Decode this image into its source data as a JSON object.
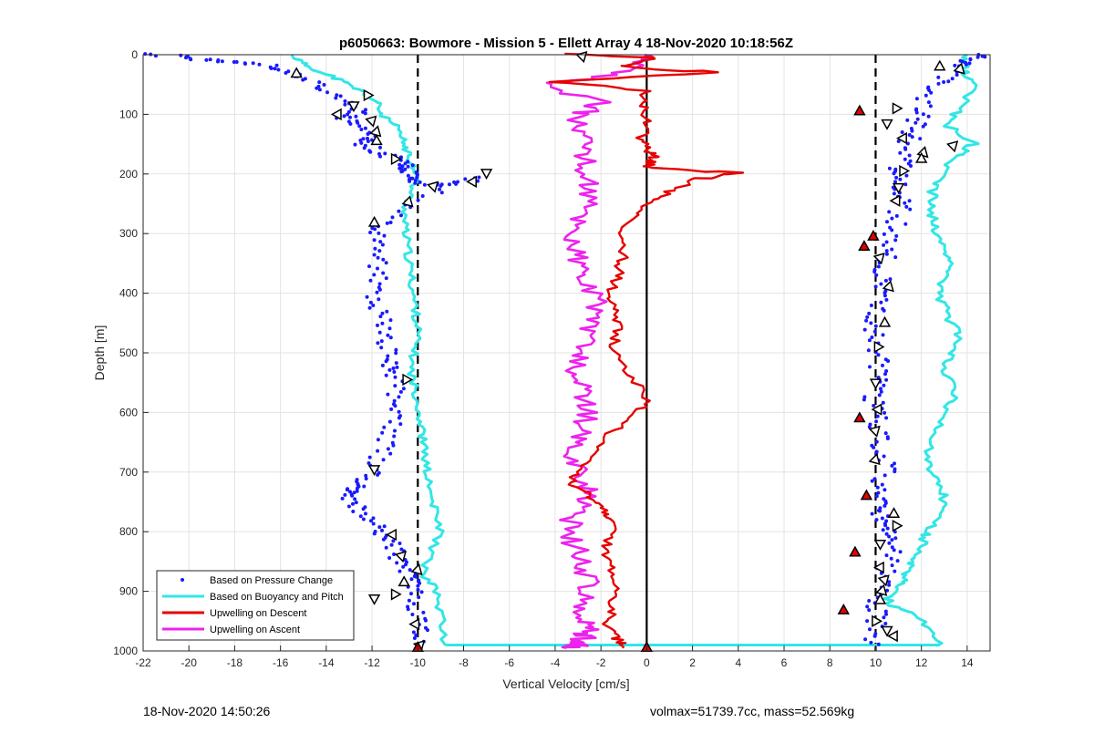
{
  "chart_data": {
    "type": "scatter",
    "title": "p6050663: Bowmore - Mission 5 - Ellett Array 4 18-Nov-2020 10:18:56Z",
    "xlabel": "Vertical Velocity [cm/s]",
    "ylabel": "Depth [m]",
    "xlim": [
      -22,
      15
    ],
    "ylim": [
      0,
      1000
    ],
    "y_reversed": true,
    "grid": true,
    "legend_position": "bottom-left",
    "x_ticks": [
      "-22",
      "-20",
      "-18",
      "-16",
      "-14",
      "-12",
      "-10",
      "-8",
      "-6",
      "-4",
      "-2",
      "0",
      "2",
      "4",
      "6",
      "8",
      "10",
      "12",
      "14"
    ],
    "y_ticks": [
      "0",
      "100",
      "200",
      "300",
      "400",
      "500",
      "600",
      "700",
      "800",
      "900",
      "1000"
    ],
    "reference_lines": [
      {
        "x": -10,
        "style": "dashed"
      },
      {
        "x": 10,
        "style": "dashed"
      },
      {
        "x": 0,
        "style": "solid"
      }
    ],
    "series": [
      {
        "name": "Based on Pressure Change",
        "style": "points",
        "color": "#1a1aff",
        "descent": {
          "x": [
            -21.5,
            -20,
            -18.5,
            -17,
            -15.8,
            -15,
            -14,
            -13,
            -12.5,
            -13.2,
            -12.8,
            -12.2,
            -12.3,
            -11.5,
            -10.9,
            -10.6,
            -10.3,
            -10.2,
            -9.9,
            -8.7,
            -7.2,
            -10.2,
            -11.6,
            -11.9,
            -11.8,
            -11.7,
            -11.9,
            -11.7,
            -11.6,
            -11.5,
            -11.3,
            -11.1,
            -10.8,
            -10.9,
            -11.1,
            -11.3,
            -11.6,
            -12.1,
            -12.6,
            -12.8,
            -13.1,
            -12.6,
            -12.0,
            -11.6,
            -11.1,
            -10.9,
            -10.5,
            -10.3,
            -10.2,
            -10.1,
            -10.0,
            -10.0
          ],
          "y": [
            0,
            5,
            10,
            15,
            25,
            40,
            60,
            80,
            95,
            105,
            120,
            140,
            150,
            165,
            175,
            185,
            195,
            205,
            215,
            220,
            205,
            245,
            280,
            300,
            330,
            360,
            390,
            420,
            450,
            480,
            510,
            530,
            550,
            580,
            610,
            640,
            670,
            700,
            720,
            730,
            740,
            760,
            780,
            800,
            820,
            840,
            860,
            880,
            900,
            930,
            960,
            990
          ]
        },
        "ascent": {
          "x": [
            9.9,
            10.1,
            10.0,
            10.2,
            10.4,
            10.6,
            10.8,
            10.3,
            10.1,
            10.0,
            10.2,
            10.5,
            10.3,
            10.1,
            10.0,
            9.9,
            10.1,
            10.2,
            10.0,
            9.8,
            10.0,
            10.2,
            10.3,
            10.5,
            10.8,
            11.0,
            11.2,
            11.0,
            10.9,
            11.2,
            11.4,
            11.6,
            11.8,
            12.0,
            12.5,
            13.0,
            13.5,
            14.0,
            14.5
          ],
          "y": [
            990,
            960,
            930,
            900,
            870,
            840,
            810,
            790,
            770,
            750,
            720,
            690,
            660,
            630,
            600,
            570,
            540,
            510,
            480,
            450,
            420,
            390,
            360,
            330,
            300,
            270,
            240,
            220,
            200,
            180,
            150,
            130,
            110,
            90,
            60,
            40,
            20,
            10,
            0
          ]
        }
      },
      {
        "name": "Based on Buoyancy and Pitch",
        "style": "line",
        "color": "#33e6e6",
        "descent": {
          "x": [
            -15.5,
            -15.0,
            -14.2,
            -13.3,
            -12.5,
            -11.8,
            -11.6,
            -11.0,
            -10.7,
            -10.5,
            -10.3,
            -10.0,
            -10.2,
            -10.5,
            -10.6,
            -10.5,
            -10.4,
            -10.3,
            -10.2,
            -10.1,
            -10.0,
            -10.1,
            -10.3,
            -10.2,
            -10.0,
            -9.9,
            -9.8,
            -9.7,
            -9.6,
            -9.5,
            -9.3,
            -9.0,
            -9.5,
            -9.8,
            -9.2,
            -9.0,
            -8.8
          ],
          "y": [
            0,
            15,
            30,
            45,
            60,
            80,
            100,
            120,
            140,
            160,
            180,
            200,
            220,
            250,
            280,
            310,
            340,
            370,
            400,
            430,
            460,
            490,
            520,
            550,
            580,
            610,
            640,
            670,
            700,
            730,
            760,
            800,
            840,
            870,
            900,
            940,
            990
          ]
        },
        "ascent": {
          "x": [
            12.8,
            12.4,
            11.8,
            10.5,
            10.8,
            11.2,
            11.5,
            11.8,
            12.0,
            12.3,
            12.8,
            13.0,
            12.7,
            12.2,
            12.5,
            12.9,
            13.2,
            13.5,
            13.0,
            13.3,
            13.6,
            13.2,
            12.8,
            12.9,
            13.3,
            12.9,
            12.6,
            12.4,
            12.5,
            13.0,
            13.5,
            14.3,
            13.2,
            13.6,
            14.4,
            13.8,
            14.0
          ],
          "y": [
            990,
            970,
            940,
            920,
            900,
            880,
            860,
            840,
            820,
            800,
            770,
            740,
            710,
            680,
            650,
            620,
            590,
            560,
            530,
            500,
            470,
            440,
            410,
            380,
            350,
            320,
            290,
            260,
            230,
            200,
            170,
            150,
            120,
            90,
            50,
            25,
            0
          ]
        }
      },
      {
        "name": "Upwelling on Descent",
        "style": "line",
        "color": "#e60000",
        "x": [
          -3.5,
          0.5,
          -1.0,
          3.0,
          -4.0,
          0.0,
          -0.3,
          0.1,
          -0.2,
          0.0,
          0.3,
          0.2,
          0.0,
          4.0,
          2.0,
          1.0,
          0.0,
          -0.8,
          -1.2,
          -1.0,
          -1.3,
          -1.5,
          -1.4,
          -1.3,
          -1.5,
          -1.0,
          0.0,
          -0.3,
          -1.5,
          -2.5,
          -3.0,
          -3.5,
          -2.5,
          -2.0,
          -1.5,
          -1.6,
          -1.8,
          -1.5,
          -1.4,
          -1.5,
          -1.7,
          -1.3,
          -1.0
        ],
        "y": [
          0,
          5,
          20,
          30,
          45,
          60,
          80,
          110,
          140,
          160,
          170,
          180,
          190,
          198,
          210,
          230,
          250,
          280,
          310,
          340,
          370,
          400,
          430,
          460,
          490,
          530,
          570,
          600,
          630,
          670,
          700,
          720,
          740,
          760,
          780,
          810,
          840,
          870,
          900,
          930,
          960,
          980,
          995
        ]
      },
      {
        "name": "Upwelling on Ascent",
        "style": "line",
        "color": "#ee22ee",
        "x": [
          -0.3,
          -0.5,
          -1.0,
          -4.5,
          -2.0,
          -3.0,
          -2.8,
          -2.5,
          -2.8,
          -2.4,
          -2.6,
          -2.9,
          -3.2,
          -3.0,
          -2.8,
          -2.4,
          -2.0,
          -2.5,
          -2.9,
          -3.1,
          -3.0,
          -2.8,
          -2.6,
          -3.0,
          -3.2,
          -2.8,
          -2.5,
          -3.0,
          -3.4,
          -3.2,
          -2.8,
          -2.6,
          -2.8,
          -3.0,
          -2.4,
          -2.6,
          -2.8,
          -3.0,
          -3.5
        ],
        "y": [
          0,
          10,
          30,
          50,
          80,
          100,
          130,
          160,
          190,
          220,
          250,
          280,
          310,
          340,
          370,
          400,
          430,
          460,
          490,
          520,
          550,
          580,
          610,
          640,
          670,
          700,
          730,
          760,
          790,
          820,
          850,
          880,
          910,
          940,
          960,
          970,
          980,
          990,
          995
        ]
      }
    ],
    "markers": {
      "black_triangles": [
        {
          "x": -15.3,
          "y": 32
        },
        {
          "x": -12.2,
          "y": 68
        },
        {
          "x": -12.8,
          "y": 85
        },
        {
          "x": -13.5,
          "y": 100
        },
        {
          "x": -12.0,
          "y": 110
        },
        {
          "x": -11.8,
          "y": 130
        },
        {
          "x": -11.8,
          "y": 145
        },
        {
          "x": -11.0,
          "y": 175
        },
        {
          "x": -7.0,
          "y": 198
        },
        {
          "x": -7.6,
          "y": 213
        },
        {
          "x": -9.3,
          "y": 220
        },
        {
          "x": -10.4,
          "y": 248
        },
        {
          "x": -11.9,
          "y": 282
        },
        {
          "x": -10.5,
          "y": 545
        },
        {
          "x": -11.9,
          "y": 695
        },
        {
          "x": -11.1,
          "y": 805
        },
        {
          "x": -10.7,
          "y": 840
        },
        {
          "x": -10.0,
          "y": 865
        },
        {
          "x": -10.6,
          "y": 885
        },
        {
          "x": -11.0,
          "y": 905
        },
        {
          "x": -11.9,
          "y": 912
        },
        {
          "x": -10.1,
          "y": 955
        },
        {
          "x": -9.9,
          "y": 990
        },
        {
          "x": 13.7,
          "y": 25
        },
        {
          "x": 12.8,
          "y": 20
        },
        {
          "x": 10.9,
          "y": 90
        },
        {
          "x": 10.5,
          "y": 115
        },
        {
          "x": 11.2,
          "y": 140
        },
        {
          "x": 13.4,
          "y": 152
        },
        {
          "x": 12.1,
          "y": 165
        },
        {
          "x": 12.0,
          "y": 175
        },
        {
          "x": 11.2,
          "y": 195
        },
        {
          "x": 11.0,
          "y": 222
        },
        {
          "x": 10.9,
          "y": 245
        },
        {
          "x": 10.2,
          "y": 340
        },
        {
          "x": 10.6,
          "y": 390
        },
        {
          "x": 10.4,
          "y": 450
        },
        {
          "x": 10.1,
          "y": 490
        },
        {
          "x": 10.0,
          "y": 550
        },
        {
          "x": 10.1,
          "y": 595
        },
        {
          "x": 10.0,
          "y": 630
        },
        {
          "x": 10.0,
          "y": 680
        },
        {
          "x": 10.8,
          "y": 770
        },
        {
          "x": 10.9,
          "y": 790
        },
        {
          "x": 10.2,
          "y": 820
        },
        {
          "x": 10.2,
          "y": 860
        },
        {
          "x": 10.4,
          "y": 880
        },
        {
          "x": 10.3,
          "y": 900
        },
        {
          "x": 10.2,
          "y": 915
        },
        {
          "x": 10.0,
          "y": 950
        },
        {
          "x": 10.5,
          "y": 965
        },
        {
          "x": 10.8,
          "y": 975
        },
        {
          "x": -2.8,
          "y": 2
        }
      ],
      "red_triangles": [
        {
          "x": 9.3,
          "y": 95
        },
        {
          "x": 9.9,
          "y": 305
        },
        {
          "x": 9.5,
          "y": 322
        },
        {
          "x": 9.3,
          "y": 610
        },
        {
          "x": 9.6,
          "y": 740
        },
        {
          "x": 9.1,
          "y": 835
        },
        {
          "x": 8.6,
          "y": 932
        },
        {
          "x": -10.0,
          "y": 995
        },
        {
          "x": 0.0,
          "y": 995
        }
      ]
    }
  },
  "footer": {
    "timestamp": "18-Nov-2020 14:50:26",
    "vehicle_info": "volmax=51739.7cc, mass=52.569kg"
  }
}
